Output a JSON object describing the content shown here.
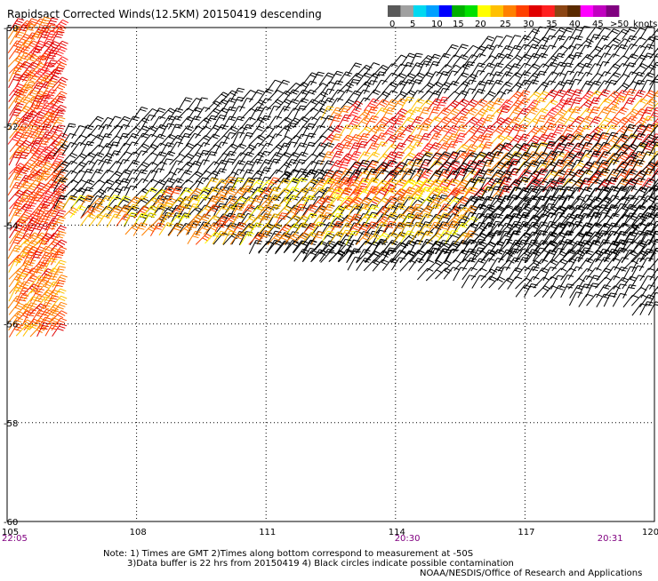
{
  "title": "Rapidsact Corrected Winds(12.5KM) 20150419 descending",
  "legend": {
    "labels": [
      "0",
      "5",
      "10",
      "15",
      "20",
      "25",
      "30",
      "35",
      "40",
      "45",
      ">50",
      "knots"
    ],
    "colors": [
      "#595959",
      "#a0a0a0",
      "#00d8f0",
      "#00a0ff",
      "#0000ff",
      "#00b000",
      "#00e000",
      "#ffff00",
      "#ffc000",
      "#ff8000",
      "#ff4000",
      "#e00000",
      "#ff2020",
      "#8b4513",
      "#5a2a00",
      "#ff00ff",
      "#c000c0",
      "#800080"
    ]
  },
  "map": {
    "lat_labels": [
      "-50",
      "-52",
      "-54",
      "-56",
      "-58",
      "-60"
    ],
    "lat_values": [
      -50,
      -52,
      -54,
      -56,
      -58,
      -60
    ],
    "lon_labels": [
      "105",
      "108",
      "111",
      "114",
      "117",
      "120"
    ],
    "lon_values": [
      105,
      108,
      111,
      114,
      117,
      120
    ],
    "lat_range": [
      -60,
      -50
    ],
    "lon_range": [
      105,
      120
    ],
    "grid": true,
    "times": [
      {
        "label": "22:05",
        "lon": 105.0
      },
      {
        "label": "20:30",
        "lon": 114.1
      },
      {
        "label": "20:31",
        "lon": 118.8
      }
    ]
  },
  "notes": [
    "Note: 1) Times are GMT 2)Times along bottom correspond to measurement at -50S",
    "3)Data buffer is 22 hrs from 20150419 4) Black circles indicate possible contamination",
    "NOAA/NESDIS/Office of Research and Applications"
  ]
}
